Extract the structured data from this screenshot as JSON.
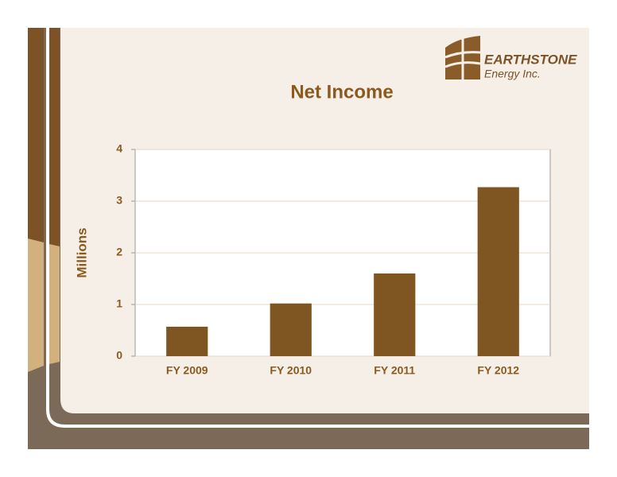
{
  "logo": {
    "name": "EARTHSTONE",
    "tagline": "Energy Inc."
  },
  "chart_data": {
    "type": "bar",
    "title": "Net Income",
    "y_label": "Millions",
    "categories": [
      "FY 2009",
      "FY 2010",
      "FY 2011",
      "FY 2012"
    ],
    "values": [
      0.57,
      1.02,
      1.6,
      3.27
    ],
    "color": "#7f5522",
    "ylim": [
      0,
      4
    ],
    "yticks": [
      0,
      1,
      2,
      3,
      4
    ],
    "grid": true
  }
}
